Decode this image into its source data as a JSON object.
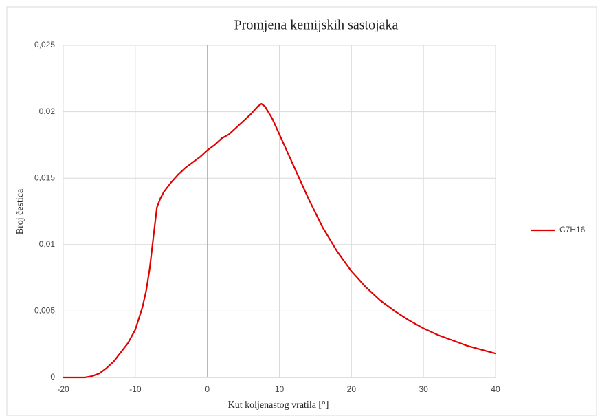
{
  "chart_data": {
    "type": "line",
    "title": "Promjena kemijskih sastojaka",
    "x_label": "Kut koljenastog vratila [°]",
    "y_label": "Broj čestica",
    "x": [
      -20,
      -17,
      -16,
      -15,
      -14,
      -13,
      -12,
      -11,
      -10,
      -9,
      -8.5,
      -8,
      -7.5,
      -7,
      -6.5,
      -6,
      -5,
      -4,
      -3,
      -2,
      -1,
      0,
      1,
      2,
      3,
      4,
      5,
      6,
      7,
      7.5,
      8,
      9,
      10,
      12,
      14,
      16,
      18,
      20,
      22,
      24,
      26,
      28,
      30,
      32,
      34,
      36,
      38,
      40
    ],
    "series": [
      {
        "name": "C7H16",
        "color": "#e00000",
        "values": [
          0,
          0,
          0.0001,
          0.0003,
          0.0007,
          0.0012,
          0.0019,
          0.0026,
          0.0036,
          0.0053,
          0.0065,
          0.0082,
          0.0105,
          0.0128,
          0.0135,
          0.014,
          0.0147,
          0.0153,
          0.0158,
          0.0162,
          0.0166,
          0.0171,
          0.0175,
          0.018,
          0.0183,
          0.0188,
          0.0193,
          0.0198,
          0.0204,
          0.0206,
          0.0204,
          0.0195,
          0.0183,
          0.0159,
          0.0135,
          0.0113,
          0.0095,
          0.008,
          0.0068,
          0.0058,
          0.005,
          0.0043,
          0.0037,
          0.0032,
          0.0028,
          0.0024,
          0.0021,
          0.0018
        ]
      }
    ],
    "xlim": [
      -20,
      40
    ],
    "xticks": [
      -20,
      -10,
      0,
      10,
      20,
      30,
      40
    ],
    "ylim": [
      0,
      0.025
    ],
    "yticks": [
      0,
      {
        "value": 0.005,
        "label": "0,005"
      },
      {
        "value": 0.01,
        "label": "0,01"
      },
      {
        "value": 0.015,
        "label": "0,015"
      },
      {
        "value": 0.02,
        "label": "0,02"
      },
      {
        "value": 0.025,
        "label": "0,025"
      }
    ],
    "grid": true,
    "legend": "right"
  }
}
